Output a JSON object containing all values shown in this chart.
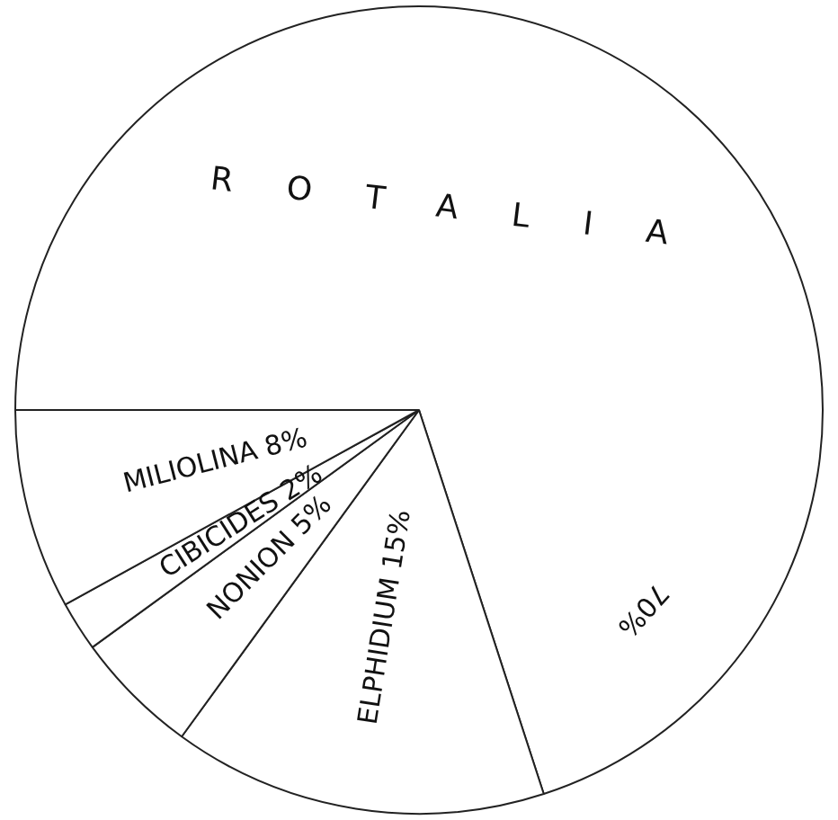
{
  "chart_data": {
    "type": "pie",
    "categories": [
      "ROTALIA",
      "ELPHIDIUM",
      "NONION",
      "CIBICIDES",
      "MILIOLINA"
    ],
    "values": [
      70,
      15,
      5,
      2,
      8
    ],
    "colors": [
      "#ffffff",
      "#ffffff",
      "#ffffff",
      "#ffffff",
      "#ffffff"
    ],
    "value_labels": [
      "70%",
      "15%",
      "5%",
      "2%",
      "8%"
    ],
    "legend": false
  }
}
